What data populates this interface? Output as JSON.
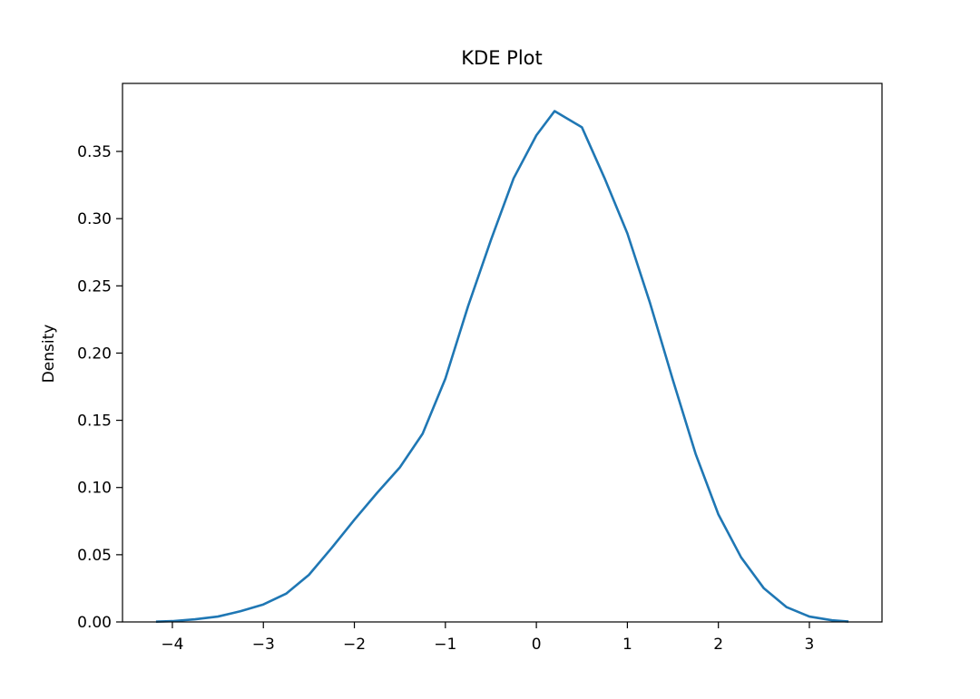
{
  "chart_data": {
    "type": "line",
    "title": "KDE Plot",
    "y_label": "Density",
    "color": "#1f77b4",
    "x": [
      -4.18,
      -4,
      -3.75,
      -3.5,
      -3.25,
      -3,
      -2.75,
      -2.5,
      -2.25,
      -2,
      -1.75,
      -1.5,
      -1.25,
      -1,
      -0.75,
      -0.5,
      -0.25,
      0,
      0.2,
      0.5,
      0.75,
      1,
      1.25,
      1.5,
      1.75,
      2,
      2.25,
      2.5,
      2.75,
      3,
      3.25,
      3.43
    ],
    "values": [
      0.0002,
      0.0006,
      0.002,
      0.004,
      0.008,
      0.013,
      0.021,
      0.035,
      0.055,
      0.076,
      0.096,
      0.115,
      0.14,
      0.181,
      0.235,
      0.284,
      0.33,
      0.362,
      0.38,
      0.368,
      0.33,
      0.289,
      0.237,
      0.18,
      0.125,
      0.08,
      0.048,
      0.025,
      0.011,
      0.004,
      0.0012,
      0.0003
    ],
    "xlim": [
      -4.548,
      3.798
    ],
    "ylim": [
      0,
      0.4006
    ],
    "xticks": [
      {
        "value": -4,
        "label": "−4"
      },
      {
        "value": -3,
        "label": "−3"
      },
      {
        "value": -2,
        "label": "−2"
      },
      {
        "value": -1,
        "label": "−1"
      },
      0,
      1,
      2,
      3
    ],
    "yticks": [
      {
        "value": 0,
        "label": "0.00"
      },
      {
        "value": 0.05,
        "label": "0.05"
      },
      {
        "value": 0.1,
        "label": "0.10"
      },
      {
        "value": 0.15,
        "label": "0.15"
      },
      {
        "value": 0.2,
        "label": "0.20"
      },
      {
        "value": 0.25,
        "label": "0.25"
      },
      {
        "value": 0.3,
        "label": "0.30"
      },
      {
        "value": 0.35,
        "label": "0.35"
      }
    ],
    "grid": false
  }
}
